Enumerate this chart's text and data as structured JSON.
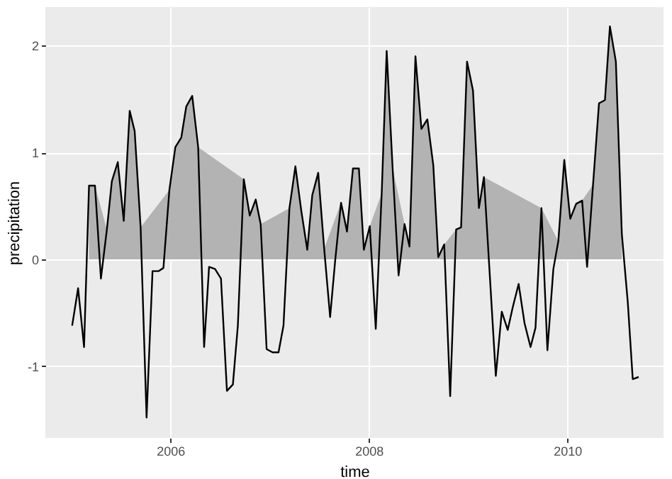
{
  "chart_data": {
    "type": "line",
    "xlabel": "time",
    "ylabel": "precipitation",
    "xlim": [
      2004.74,
      2010.97
    ],
    "ylim": [
      -1.67,
      2.36
    ],
    "xticks": [
      2006,
      2008,
      2010
    ],
    "yticks": [
      -1,
      0,
      1,
      2
    ],
    "grid": true,
    "series": [
      {
        "type": "area",
        "color": "#b3b3b3",
        "x": [
          2005.18,
          2005.24,
          2005.36,
          2005.41,
          2005.47,
          2005.53,
          2005.59,
          2005.64,
          2005.7,
          2005.99,
          2006.05,
          2006.11,
          2006.16,
          2006.22,
          2006.28,
          2006.74,
          2006.8,
          2006.86,
          2006.91,
          2007.2,
          2007.26,
          2007.32,
          2007.38,
          2007.43,
          2007.49,
          2007.55,
          2007.72,
          2007.78,
          2007.84,
          2007.9,
          2007.95,
          2008.01,
          2008.13,
          2008.18,
          2008.24,
          2008.36,
          2008.41,
          2008.47,
          2008.53,
          2008.59,
          2008.65,
          2008.7,
          2008.76,
          2008.88,
          2008.93,
          2008.99,
          2009.05,
          2009.11,
          2009.16,
          2009.74,
          2009.91,
          2009.97,
          2010.03,
          2010.09,
          2010.15,
          2010.26,
          2010.32,
          2010.38,
          2010.43,
          2010.49,
          2010.55
        ],
        "values": [
          0.69,
          0.69,
          0.28,
          0.73,
          0.91,
          0.36,
          1.39,
          1.2,
          0.3,
          0.65,
          1.05,
          1.14,
          1.43,
          1.53,
          1.05,
          0.75,
          0.41,
          0.56,
          0.33,
          0.48,
          0.87,
          0.45,
          0.09,
          0.6,
          0.81,
          0.1,
          0.53,
          0.26,
          0.85,
          0.85,
          0.09,
          0.31,
          0.62,
          1.95,
          0.85,
          0.33,
          0.12,
          1.9,
          1.22,
          1.31,
          0.88,
          0.02,
          0.14,
          0.28,
          0.3,
          1.85,
          1.58,
          0.48,
          0.77,
          0.48,
          0.17,
          0.93,
          0.38,
          0.52,
          0.55,
          0.7,
          1.46,
          1.49,
          2.18,
          1.85,
          0.24
        ]
      },
      {
        "color": "#000000",
        "x": [
          2005.01,
          2005.07,
          2005.13,
          2005.18,
          2005.24,
          2005.3,
          2005.36,
          2005.41,
          2005.47,
          2005.53,
          2005.59,
          2005.64,
          2005.7,
          2005.76,
          2005.82,
          2005.88,
          2005.93,
          2005.99,
          2006.05,
          2006.11,
          2006.16,
          2006.22,
          2006.28,
          2006.34,
          2006.39,
          2006.45,
          2006.51,
          2006.57,
          2006.63,
          2006.68,
          2006.74,
          2006.8,
          2006.86,
          2006.91,
          2006.97,
          2007.03,
          2007.09,
          2007.14,
          2007.2,
          2007.26,
          2007.32,
          2007.38,
          2007.43,
          2007.49,
          2007.55,
          2007.61,
          2007.66,
          2007.72,
          2007.78,
          2007.84,
          2007.9,
          2007.95,
          2008.01,
          2008.07,
          2008.13,
          2008.18,
          2008.24,
          2008.3,
          2008.36,
          2008.41,
          2008.47,
          2008.53,
          2008.59,
          2008.65,
          2008.7,
          2008.76,
          2008.82,
          2008.88,
          2008.93,
          2008.99,
          2009.05,
          2009.11,
          2009.16,
          2009.22,
          2009.28,
          2009.34,
          2009.4,
          2009.45,
          2009.51,
          2009.57,
          2009.63,
          2009.68,
          2009.74,
          2009.8,
          2009.86,
          2009.91,
          2009.97,
          2010.03,
          2010.09,
          2010.15,
          2010.2,
          2010.26,
          2010.32,
          2010.38,
          2010.43,
          2010.49,
          2010.55,
          2010.61,
          2010.66,
          2010.72
        ],
        "values": [
          -0.62,
          -0.27,
          -0.82,
          0.69,
          0.69,
          -0.18,
          0.28,
          0.73,
          0.91,
          0.36,
          1.39,
          1.2,
          0.3,
          -1.48,
          -0.11,
          -0.11,
          -0.08,
          0.65,
          1.05,
          1.14,
          1.43,
          1.53,
          1.05,
          -0.82,
          -0.07,
          -0.09,
          -0.18,
          -1.23,
          -1.17,
          -0.62,
          0.75,
          0.41,
          0.56,
          0.33,
          -0.84,
          -0.87,
          -0.87,
          -0.62,
          0.48,
          0.87,
          0.45,
          0.09,
          0.6,
          0.81,
          0.1,
          -0.54,
          -0.02,
          0.53,
          0.26,
          0.85,
          0.85,
          0.09,
          0.31,
          -0.65,
          0.62,
          1.95,
          0.85,
          -0.15,
          0.33,
          0.12,
          1.9,
          1.22,
          1.31,
          0.88,
          0.02,
          0.14,
          -1.28,
          0.28,
          0.3,
          1.85,
          1.58,
          0.48,
          0.77,
          -0.16,
          -1.09,
          -0.49,
          -0.66,
          -0.45,
          -0.23,
          -0.6,
          -0.82,
          -0.64,
          0.48,
          -0.85,
          -0.09,
          0.17,
          0.93,
          0.38,
          0.52,
          0.55,
          -0.07,
          0.7,
          1.46,
          1.49,
          2.18,
          1.85,
          0.24,
          -0.4,
          -1.12,
          -1.1
        ]
      }
    ]
  }
}
